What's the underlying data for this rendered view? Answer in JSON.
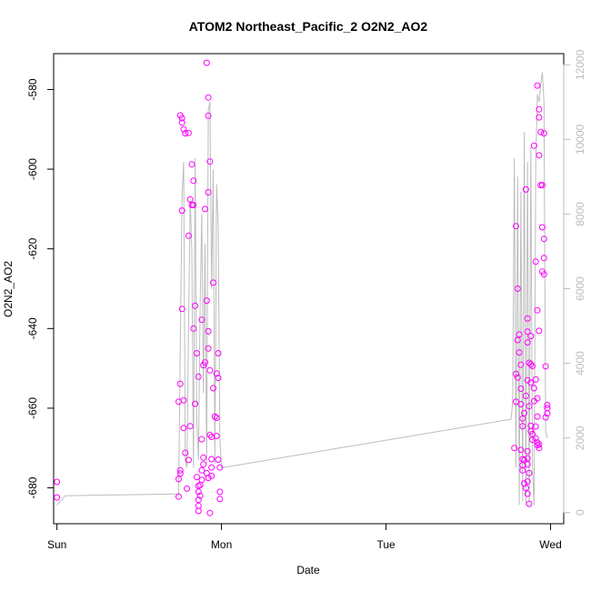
{
  "chart_data": {
    "type": "scatter",
    "title": "ATOM2 Northeast_Pacific_2 O2N2_AO2",
    "xlabel": "Date",
    "ylabel": "O2N2_AO2",
    "x_ticks": [
      "Sun",
      "Mon",
      "Tue",
      "Wed"
    ],
    "x_tick_values": [
      0,
      1,
      2,
      3
    ],
    "xlim": [
      -0.02,
      3.08
    ],
    "ylim": [
      -689,
      -571
    ],
    "y_ticks": [
      -680,
      -660,
      -640,
      -620,
      -600,
      -580
    ],
    "y2_ticks": [
      0,
      2000,
      4000,
      6000,
      8000,
      10000,
      12000
    ],
    "y2lim": [
      -300,
      12300
    ],
    "point_color": "#ff00ff",
    "line_color": "#bdbdbd",
    "grid": false,
    "series": [
      {
        "type": "scatter",
        "points": [
          [
            0.0,
            -678.5
          ],
          [
            0.0,
            -682.4
          ],
          [
            0.74,
            -682.2
          ],
          [
            0.74,
            -677.8
          ],
          [
            0.75,
            -676.4
          ],
          [
            0.75,
            -675.6
          ],
          [
            0.74,
            -658.4
          ],
          [
            0.75,
            -653.9
          ],
          [
            0.76,
            -635.1
          ],
          [
            0.76,
            -610.4
          ],
          [
            0.77,
            -665.0
          ],
          [
            0.77,
            -658.0
          ],
          [
            0.78,
            -671.2
          ],
          [
            0.75,
            -586.5
          ],
          [
            0.76,
            -587.2
          ],
          [
            0.76,
            -588.3
          ],
          [
            0.77,
            -590.0
          ],
          [
            0.78,
            -591.0
          ],
          [
            0.8,
            -590.9
          ],
          [
            0.8,
            -616.7
          ],
          [
            0.81,
            -607.6
          ],
          [
            0.82,
            -609.0
          ],
          [
            0.83,
            -609.0
          ],
          [
            0.79,
            -680.2
          ],
          [
            0.8,
            -673.0
          ],
          [
            0.81,
            -664.5
          ],
          [
            0.82,
            -598.8
          ],
          [
            0.83,
            -602.9
          ],
          [
            0.84,
            -634.3
          ],
          [
            0.85,
            -646.2
          ],
          [
            0.86,
            -652.1
          ],
          [
            0.83,
            -640.0
          ],
          [
            0.84,
            -658.9
          ],
          [
            0.85,
            -677.3
          ],
          [
            0.86,
            -679.5
          ],
          [
            0.86,
            -681.0
          ],
          [
            0.86,
            -683.0
          ],
          [
            0.86,
            -684.5
          ],
          [
            0.86,
            -685.8
          ],
          [
            0.87,
            -682.0
          ],
          [
            0.87,
            -679.3
          ],
          [
            0.88,
            -678.0
          ],
          [
            0.88,
            -675.6
          ],
          [
            0.89,
            -674.1
          ],
          [
            0.89,
            -672.4
          ],
          [
            0.88,
            -667.8
          ],
          [
            0.89,
            -649.2
          ],
          [
            0.88,
            -637.8
          ],
          [
            0.9,
            -610.0
          ],
          [
            0.9,
            -648.5
          ],
          [
            0.91,
            -676.3
          ],
          [
            0.92,
            -677.5
          ],
          [
            0.93,
            -686.3
          ],
          [
            0.91,
            -573.3
          ],
          [
            0.92,
            -582.0
          ],
          [
            0.92,
            -586.6
          ],
          [
            0.93,
            -598.1
          ],
          [
            0.92,
            -605.8
          ],
          [
            0.91,
            -633.0
          ],
          [
            0.92,
            -640.7
          ],
          [
            0.92,
            -645.0
          ],
          [
            0.93,
            -650.5
          ],
          [
            0.93,
            -666.7
          ],
          [
            0.94,
            -667.2
          ],
          [
            0.94,
            -672.8
          ],
          [
            0.94,
            -674.9
          ],
          [
            0.94,
            -677.0
          ],
          [
            0.95,
            -628.5
          ],
          [
            0.95,
            -655.0
          ],
          [
            0.96,
            -662.1
          ],
          [
            0.97,
            -662.4
          ],
          [
            0.97,
            -651.3
          ],
          [
            0.98,
            -652.4
          ],
          [
            0.98,
            -646.2
          ],
          [
            0.97,
            -667.0
          ],
          [
            0.98,
            -672.9
          ],
          [
            0.99,
            -681.0
          ],
          [
            0.99,
            -682.8
          ],
          [
            0.99,
            -674.9
          ],
          [
            2.78,
            -670.0
          ],
          [
            2.79,
            -658.4
          ],
          [
            2.79,
            -651.4
          ],
          [
            2.8,
            -652.3
          ],
          [
            2.8,
            -642.9
          ],
          [
            2.79,
            -614.3
          ],
          [
            2.8,
            -630.0
          ],
          [
            2.81,
            -641.5
          ],
          [
            2.81,
            -646.0
          ],
          [
            2.82,
            -649.1
          ],
          [
            2.82,
            -655.1
          ],
          [
            2.82,
            -659.0
          ],
          [
            2.83,
            -662.6
          ],
          [
            2.83,
            -664.5
          ],
          [
            2.82,
            -670.5
          ],
          [
            2.83,
            -672.8
          ],
          [
            2.83,
            -674.3
          ],
          [
            2.83,
            -675.6
          ],
          [
            2.84,
            -673.0
          ],
          [
            2.84,
            -678.9
          ],
          [
            2.84,
            -661.2
          ],
          [
            2.85,
            -656.9
          ],
          [
            2.86,
            -653.0
          ],
          [
            2.85,
            -605.1
          ],
          [
            2.86,
            -637.5
          ],
          [
            2.86,
            -640.8
          ],
          [
            2.86,
            -643.5
          ],
          [
            2.87,
            -648.6
          ],
          [
            2.88,
            -649.0
          ],
          [
            2.88,
            -653.6
          ],
          [
            2.87,
            -659.5
          ],
          [
            2.88,
            -664.4
          ],
          [
            2.88,
            -665.8
          ],
          [
            2.89,
            -666.5
          ],
          [
            2.89,
            -667.9
          ],
          [
            2.86,
            -670.8
          ],
          [
            2.86,
            -672.6
          ],
          [
            2.86,
            -674.1
          ],
          [
            2.87,
            -676.3
          ],
          [
            2.86,
            -678.4
          ],
          [
            2.85,
            -680.0
          ],
          [
            2.86,
            -681.5
          ],
          [
            2.87,
            -684.0
          ],
          [
            2.88,
            -641.9
          ],
          [
            2.89,
            -649.4
          ],
          [
            2.9,
            -655.0
          ],
          [
            2.9,
            -658.2
          ],
          [
            2.91,
            -664.6
          ],
          [
            2.91,
            -667.6
          ],
          [
            2.92,
            -669.3
          ],
          [
            2.91,
            -652.8
          ],
          [
            2.92,
            -662.1
          ],
          [
            2.92,
            -657.5
          ],
          [
            2.9,
            -594.1
          ],
          [
            2.91,
            -623.2
          ],
          [
            2.92,
            -635.4
          ],
          [
            2.93,
            -640.6
          ],
          [
            2.92,
            -579.0
          ],
          [
            2.93,
            -585.0
          ],
          [
            2.93,
            -587.0
          ],
          [
            2.93,
            -596.5
          ],
          [
            2.94,
            -590.7
          ],
          [
            2.92,
            -668.6
          ],
          [
            2.93,
            -670.0
          ],
          [
            2.93,
            -669.1
          ],
          [
            2.94,
            -604.0
          ],
          [
            2.95,
            -604.0
          ],
          [
            2.95,
            -614.6
          ],
          [
            2.96,
            -617.5
          ],
          [
            2.96,
            -622.3
          ],
          [
            2.95,
            -625.7
          ],
          [
            2.96,
            -626.4
          ],
          [
            2.96,
            -591.0
          ],
          [
            2.97,
            -649.5
          ],
          [
            2.98,
            -659.2
          ],
          [
            2.98,
            -660.0
          ],
          [
            2.98,
            -661.3
          ],
          [
            2.97,
            -662.3
          ]
        ]
      },
      {
        "type": "line",
        "axis": "right",
        "points": [
          [
            0.0,
            200
          ],
          [
            0.05,
            450
          ],
          [
            0.74,
            500
          ],
          [
            0.75,
            4500
          ],
          [
            0.76,
            8500
          ],
          [
            0.77,
            9400
          ],
          [
            0.78,
            1400
          ],
          [
            0.79,
            1200
          ],
          [
            0.8,
            5000
          ],
          [
            0.81,
            8400
          ],
          [
            0.82,
            7000
          ],
          [
            0.83,
            1200
          ],
          [
            0.84,
            9500
          ],
          [
            0.85,
            2500
          ],
          [
            0.86,
            1400
          ],
          [
            0.87,
            5500
          ],
          [
            0.88,
            8000
          ],
          [
            0.89,
            3200
          ],
          [
            0.9,
            7200
          ],
          [
            0.91,
            1300
          ],
          [
            0.92,
            10800
          ],
          [
            0.93,
            11000
          ],
          [
            0.94,
            6000
          ],
          [
            0.95,
            9200
          ],
          [
            0.96,
            1300
          ],
          [
            0.97,
            8800
          ],
          [
            0.98,
            7700
          ],
          [
            0.99,
            2000
          ],
          [
            1.0,
            1200
          ],
          [
            2.76,
            2500
          ],
          [
            2.77,
            3000
          ],
          [
            2.78,
            9500
          ],
          [
            2.79,
            1200
          ],
          [
            2.8,
            9000
          ],
          [
            2.81,
            200
          ],
          [
            2.82,
            8600
          ],
          [
            2.83,
            300
          ],
          [
            2.84,
            10200
          ],
          [
            2.85,
            200
          ],
          [
            2.86,
            9400
          ],
          [
            2.87,
            200
          ],
          [
            2.88,
            9800
          ],
          [
            2.89,
            1200
          ],
          [
            2.9,
            200
          ],
          [
            2.91,
            9300
          ],
          [
            2.92,
            11200
          ],
          [
            2.93,
            11000
          ],
          [
            2.94,
            11500
          ],
          [
            2.95,
            11800
          ],
          [
            2.96,
            11000
          ],
          [
            2.97,
            2200
          ],
          [
            2.98,
            2000
          ]
        ]
      }
    ]
  }
}
